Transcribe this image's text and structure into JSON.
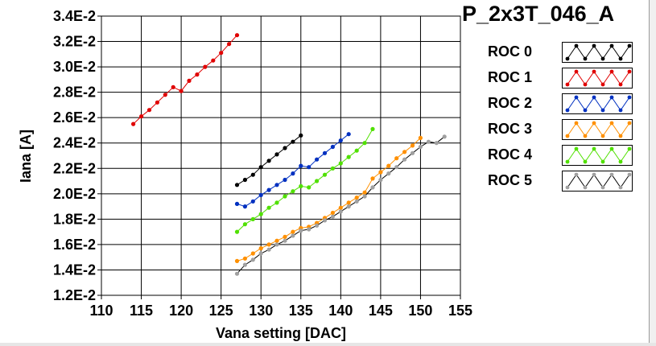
{
  "title": "P_2x3T_046_A",
  "legend": [
    {
      "label": "ROC 0",
      "color": "#000000"
    },
    {
      "label": "ROC 1",
      "color": "#e00000"
    },
    {
      "label": "ROC 2",
      "color": "#0030c0"
    },
    {
      "label": "ROC 3",
      "color": "#ff9000"
    },
    {
      "label": "ROC 4",
      "color": "#50e000"
    },
    {
      "label": "ROC 5",
      "color": "#a0a0a0"
    }
  ],
  "chart_data": {
    "type": "line",
    "title": "P_2x3T_046_A",
    "xlabel": "Vana setting [DAC]",
    "ylabel": "Iana [A]",
    "xlim": [
      110,
      155
    ],
    "ylim": [
      0.012,
      0.034
    ],
    "xticks": [
      "110",
      "115",
      "120",
      "125",
      "130",
      "135",
      "140",
      "145",
      "150",
      "155"
    ],
    "yticks": [
      "1.2E-2",
      "1.4E-2",
      "1.6E-2",
      "1.8E-2",
      "2.0E-2",
      "2.2E-2",
      "2.4E-2",
      "2.6E-2",
      "2.8E-2",
      "3.0E-2",
      "3.2E-2",
      "3.4E-2"
    ],
    "grid": true,
    "legend_position": "right",
    "series": [
      {
        "name": "ROC 0",
        "color": "#000000",
        "x": [
          127,
          128,
          129,
          130,
          131,
          132,
          133,
          134,
          135
        ],
        "y": [
          0.0207,
          0.0211,
          0.0215,
          0.0221,
          0.0226,
          0.0231,
          0.0236,
          0.0241,
          0.0246
        ]
      },
      {
        "name": "ROC 1",
        "color": "#e00000",
        "x": [
          114,
          115,
          116,
          117,
          118,
          119,
          120,
          121,
          122,
          123,
          124,
          125,
          126,
          127
        ],
        "y": [
          0.0255,
          0.0261,
          0.0266,
          0.0272,
          0.0278,
          0.0284,
          0.0281,
          0.0289,
          0.0294,
          0.03,
          0.0305,
          0.0311,
          0.0318,
          0.0325
        ]
      },
      {
        "name": "ROC 2",
        "color": "#0030c0",
        "x": [
          127,
          128,
          129,
          130,
          131,
          132,
          133,
          134,
          135,
          136,
          137,
          138,
          139,
          140,
          141
        ],
        "y": [
          0.0192,
          0.019,
          0.0194,
          0.0199,
          0.0203,
          0.0207,
          0.0211,
          0.0216,
          0.0222,
          0.0221,
          0.0227,
          0.0232,
          0.0237,
          0.0242,
          0.0247
        ]
      },
      {
        "name": "ROC 3",
        "color": "#ff9000",
        "x": [
          127,
          128,
          129,
          130,
          131,
          132,
          133,
          134,
          135,
          136,
          137,
          138,
          139,
          140,
          141,
          142,
          143,
          144,
          145,
          146,
          147,
          148,
          149,
          150
        ],
        "y": [
          0.0147,
          0.0149,
          0.0153,
          0.0157,
          0.016,
          0.0163,
          0.0166,
          0.017,
          0.0173,
          0.0174,
          0.0177,
          0.0181,
          0.0185,
          0.0189,
          0.0193,
          0.0197,
          0.0201,
          0.0212,
          0.0217,
          0.0222,
          0.0228,
          0.0233,
          0.0238,
          0.0244
        ]
      },
      {
        "name": "ROC 4",
        "color": "#50e000",
        "x": [
          127,
          128,
          129,
          130,
          131,
          132,
          133,
          134,
          135,
          136,
          137,
          138,
          139,
          140,
          141,
          142,
          143,
          144
        ],
        "y": [
          0.017,
          0.0176,
          0.018,
          0.0184,
          0.0189,
          0.0193,
          0.0198,
          0.0202,
          0.0206,
          0.0205,
          0.021,
          0.0215,
          0.022,
          0.0224,
          0.0229,
          0.0234,
          0.024,
          0.0251
        ]
      },
      {
        "name": "ROC 5",
        "color": "#a0a0a0",
        "x": [
          127,
          128,
          129,
          130,
          131,
          132,
          133,
          134,
          135,
          136,
          137,
          138,
          139,
          140,
          141,
          142,
          143,
          144,
          145,
          146,
          147,
          148,
          149,
          150,
          151,
          152,
          153
        ],
        "y": [
          0.0137,
          0.0144,
          0.0148,
          0.0153,
          0.0156,
          0.016,
          0.0163,
          0.0167,
          0.0171,
          0.0172,
          0.0175,
          0.0179,
          0.0182,
          0.0186,
          0.019,
          0.0194,
          0.0198,
          0.0205,
          0.0211,
          0.0216,
          0.0221,
          0.0227,
          0.0232,
          0.0237,
          0.0241,
          0.024,
          0.0245
        ]
      }
    ]
  }
}
